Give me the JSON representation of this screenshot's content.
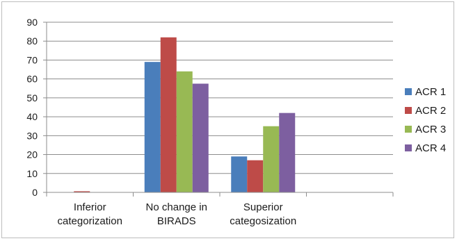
{
  "chart_data": {
    "type": "bar",
    "categories": [
      [
        "Inferior",
        "categorization"
      ],
      [
        "No change in",
        "BIRADS"
      ],
      [
        "Superior",
        "categosization"
      ],
      [
        ""
      ]
    ],
    "series": [
      {
        "name": "ACR 1",
        "color": "#4a7ebb",
        "values": [
          0,
          69,
          19,
          0
        ]
      },
      {
        "name": "ACR 2",
        "color": "#be4b48",
        "values": [
          0.6,
          82,
          17,
          0
        ]
      },
      {
        "name": "ACR 3",
        "color": "#98b954",
        "values": [
          0,
          64,
          35,
          0
        ]
      },
      {
        "name": "ACR 4",
        "color": "#7d5fa0",
        "values": [
          0,
          57.5,
          42,
          0
        ]
      }
    ],
    "yticks": [
      0,
      10,
      20,
      30,
      40,
      50,
      60,
      70,
      80,
      90
    ],
    "ylim": [
      0,
      90
    ],
    "grid": true,
    "legend_position": "right"
  }
}
